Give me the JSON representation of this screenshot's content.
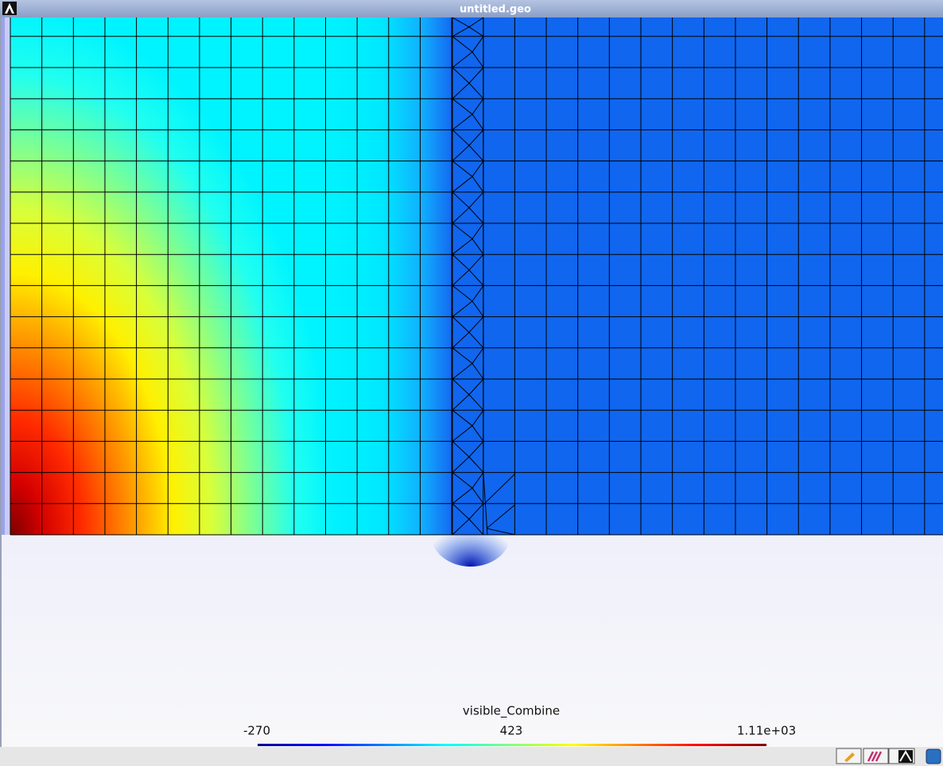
{
  "window": {
    "title": "untitled.geo"
  },
  "colorbar": {
    "title": "visible_Combine",
    "labels": [
      "-270",
      "423",
      "1.11e+03"
    ]
  }
}
